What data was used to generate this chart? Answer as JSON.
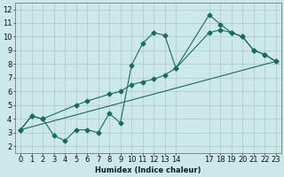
{
  "xlabel": "Humidex (Indice chaleur)",
  "background_color": "#cce8e8",
  "grid_color": "#aacccc",
  "line_color": "#1a6b5a",
  "xlim": [
    -0.5,
    23.5
  ],
  "ylim": [
    1.5,
    12.5
  ],
  "xticks": [
    0,
    1,
    2,
    3,
    4,
    5,
    6,
    7,
    8,
    9,
    10,
    11,
    12,
    13,
    14,
    17,
    18,
    19,
    20,
    21,
    22,
    23
  ],
  "yticks": [
    2,
    3,
    4,
    5,
    6,
    7,
    8,
    9,
    10,
    11,
    12
  ],
  "line1_x": [
    0,
    1,
    2,
    3,
    4,
    5,
    6,
    7,
    8,
    9,
    10,
    11,
    12,
    13,
    14,
    17,
    18,
    19,
    20,
    21,
    22,
    23
  ],
  "line1_y": [
    3.2,
    4.2,
    4.0,
    2.8,
    2.4,
    3.2,
    3.2,
    3.0,
    4.4,
    3.7,
    7.9,
    9.5,
    10.3,
    10.1,
    7.7,
    11.6,
    10.9,
    10.3,
    10.0,
    9.0,
    8.7,
    8.2
  ],
  "line2_x": [
    0,
    1,
    2,
    5,
    6,
    8,
    9,
    10,
    11,
    12,
    13,
    14,
    17,
    18,
    19,
    20,
    21,
    22,
    23
  ],
  "line2_y": [
    3.2,
    4.2,
    4.0,
    5.0,
    5.3,
    5.8,
    6.0,
    6.5,
    6.7,
    6.9,
    7.2,
    7.7,
    10.3,
    10.5,
    10.3,
    10.0,
    9.0,
    8.7,
    8.2
  ],
  "line3_x": [
    0,
    23
  ],
  "line3_y": [
    3.2,
    8.2
  ],
  "marker": "D",
  "marker_size": 2.5,
  "font_size": 6,
  "tick_font_size": 6
}
